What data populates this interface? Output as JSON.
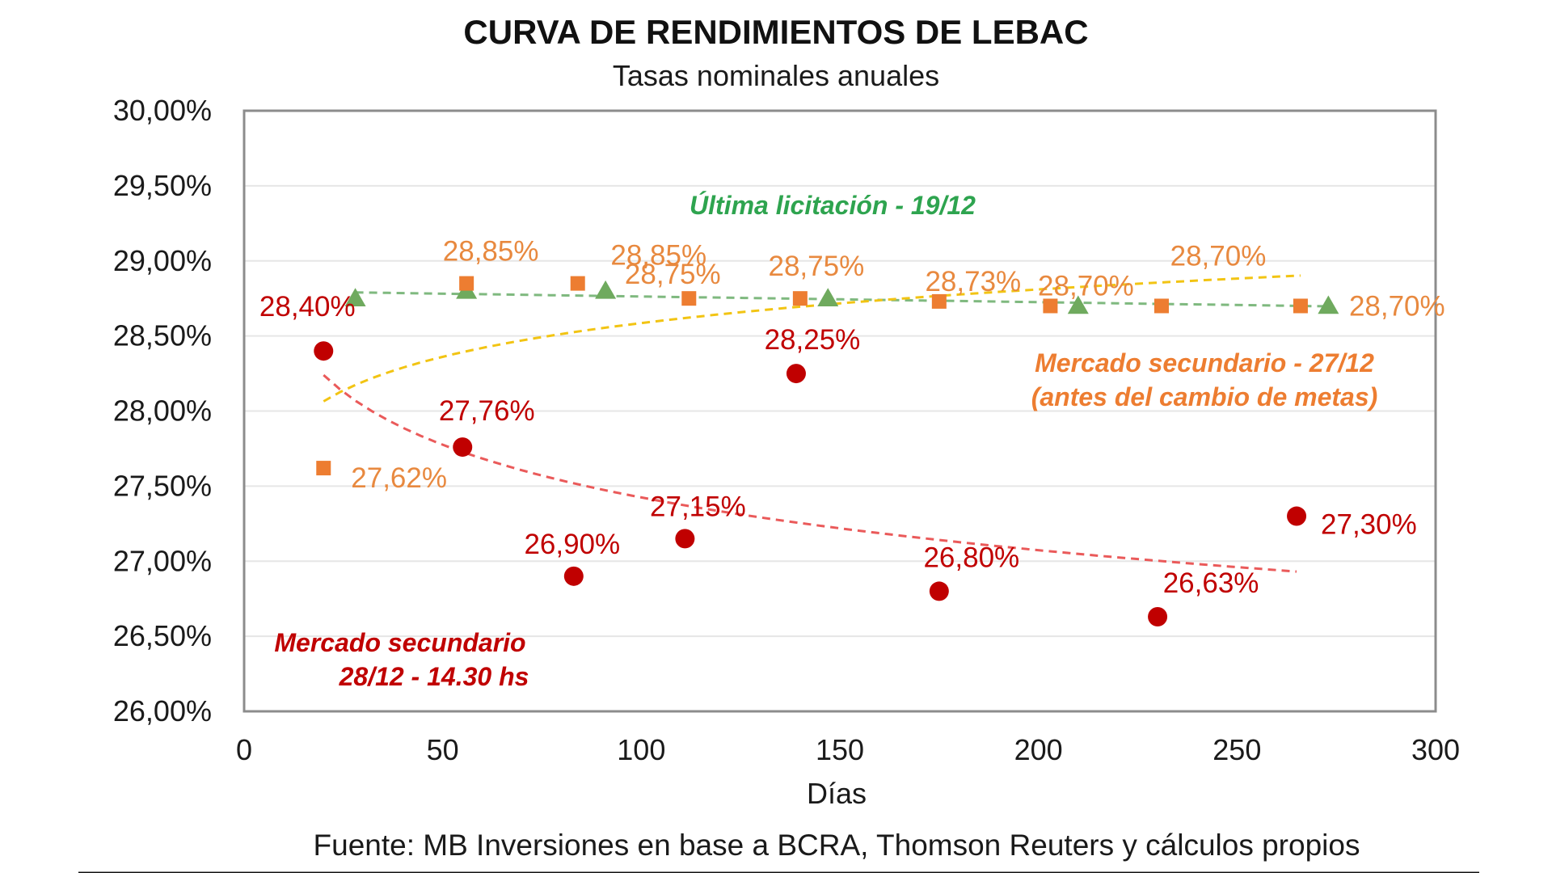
{
  "chart_data": {
    "type": "scatter",
    "title": "CURVA DE RENDIMIENTOS DE LEBAC",
    "subtitle": "Tasas nominales anuales",
    "xlabel": "Días",
    "ylabel": "",
    "xlim": [
      0,
      300
    ],
    "ylim": [
      26.0,
      30.0
    ],
    "x_ticks": [
      "0",
      "50",
      "100",
      "150",
      "200",
      "250",
      "300"
    ],
    "y_ticks": [
      "26,00%",
      "26,50%",
      "27,00%",
      "27,50%",
      "28,00%",
      "28,50%",
      "29,00%",
      "29,50%",
      "30,00%"
    ],
    "grid": "horizontal",
    "colors": {
      "licitacion": "#6faa5e",
      "licitacion_text": "#2ea44f",
      "mercado_2712": "#ed7d31",
      "mercado_2712_text": "#e8893f",
      "mercado_2812": "#c00000",
      "trend_2712": "#f2c413",
      "trend_2812": "#ea5a5a",
      "trend_licitacion": "#7fb97f"
    },
    "series": [
      {
        "key": "licitacion",
        "marker": "triangle",
        "points": [
          {
            "x": 28,
            "y": 28.75
          },
          {
            "x": 56,
            "y": 28.8
          },
          {
            "x": 91,
            "y": 28.8
          },
          {
            "x": 147,
            "y": 28.75
          },
          {
            "x": 210,
            "y": 28.7
          },
          {
            "x": 273,
            "y": 28.7
          }
        ]
      },
      {
        "key": "mercado_2712",
        "marker": "square",
        "points": [
          {
            "x": 20,
            "y": 27.62,
            "label": "27,62%"
          },
          {
            "x": 56,
            "y": 28.85,
            "label": "28,85%"
          },
          {
            "x": 84,
            "y": 28.85,
            "label": "28,85%"
          },
          {
            "x": 112,
            "y": 28.75,
            "label": "28,75%"
          },
          {
            "x": 140,
            "y": 28.75,
            "label": "28,75%"
          },
          {
            "x": 175,
            "y": 28.73,
            "label": "28,73%"
          },
          {
            "x": 203,
            "y": 28.7,
            "label": "28,70%"
          },
          {
            "x": 231,
            "y": 28.7,
            "label": "28,70%"
          },
          {
            "x": 266,
            "y": 28.7,
            "label": "28,70%"
          }
        ]
      },
      {
        "key": "mercado_2812",
        "marker": "circle",
        "points": [
          {
            "x": 20,
            "y": 28.4,
            "label": "28,40%"
          },
          {
            "x": 55,
            "y": 27.76,
            "label": "27,76%"
          },
          {
            "x": 83,
            "y": 26.9,
            "label": "26,90%"
          },
          {
            "x": 111,
            "y": 27.15,
            "label": "27,15%"
          },
          {
            "x": 139,
            "y": 28.25,
            "label": "28,25%"
          },
          {
            "x": 175,
            "y": 26.8,
            "label": "26,80%"
          },
          {
            "x": 230,
            "y": 26.63,
            "label": "26,63%"
          },
          {
            "x": 265,
            "y": 27.3,
            "label": "27,30%"
          }
        ]
      }
    ],
    "annotations": {
      "licitacion": "Última licitación - 19/12",
      "mercado_2712_line1": "Mercado secundario - 27/12",
      "mercado_2712_line2": "(antes del cambio de metas)",
      "mercado_2812_line1": "Mercado secundario",
      "mercado_2812_line2": "28/12 - 14.30 hs"
    }
  },
  "source": "Fuente: MB Inversiones en base a BCRA, Thomson Reuters y cálculos propios"
}
